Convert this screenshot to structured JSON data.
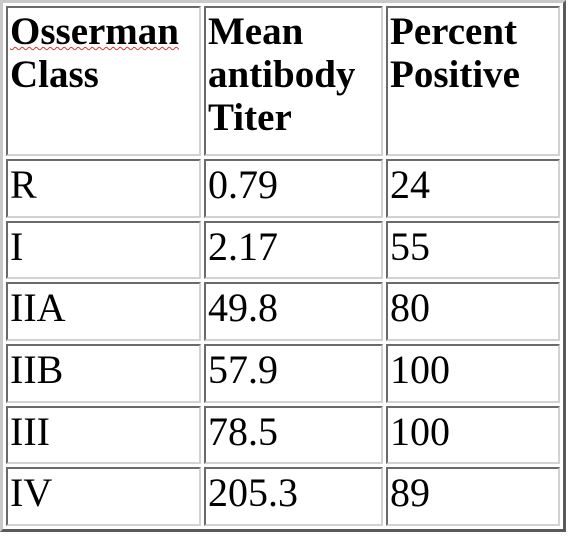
{
  "table": {
    "headers": [
      {
        "line1": "Osserman",
        "line2": "Class",
        "line3": ""
      },
      {
        "line1": "Mean",
        "line2": "antibody",
        "line3": "Titer"
      },
      {
        "line1": "Percent",
        "line2": "Positive",
        "line3": ""
      }
    ],
    "rows": [
      {
        "cls": "R",
        "titer": "0.79",
        "pct": "24"
      },
      {
        "cls": "I",
        "titer": "2.17",
        "pct": "55"
      },
      {
        "cls": "IIA",
        "titer": "49.8",
        "pct": "80"
      },
      {
        "cls": "IIB",
        "titer": "57.9",
        "pct": "100"
      },
      {
        "cls": "III",
        "titer": "78.5",
        "pct": "100"
      },
      {
        "cls": "IV",
        "titer": "205.3",
        "pct": "89"
      }
    ]
  },
  "colors": {
    "text": "#000000",
    "border_dark": "#5a5a5a",
    "border_light": "#c8c8c8",
    "spellcheck_underline": "#e03030"
  }
}
